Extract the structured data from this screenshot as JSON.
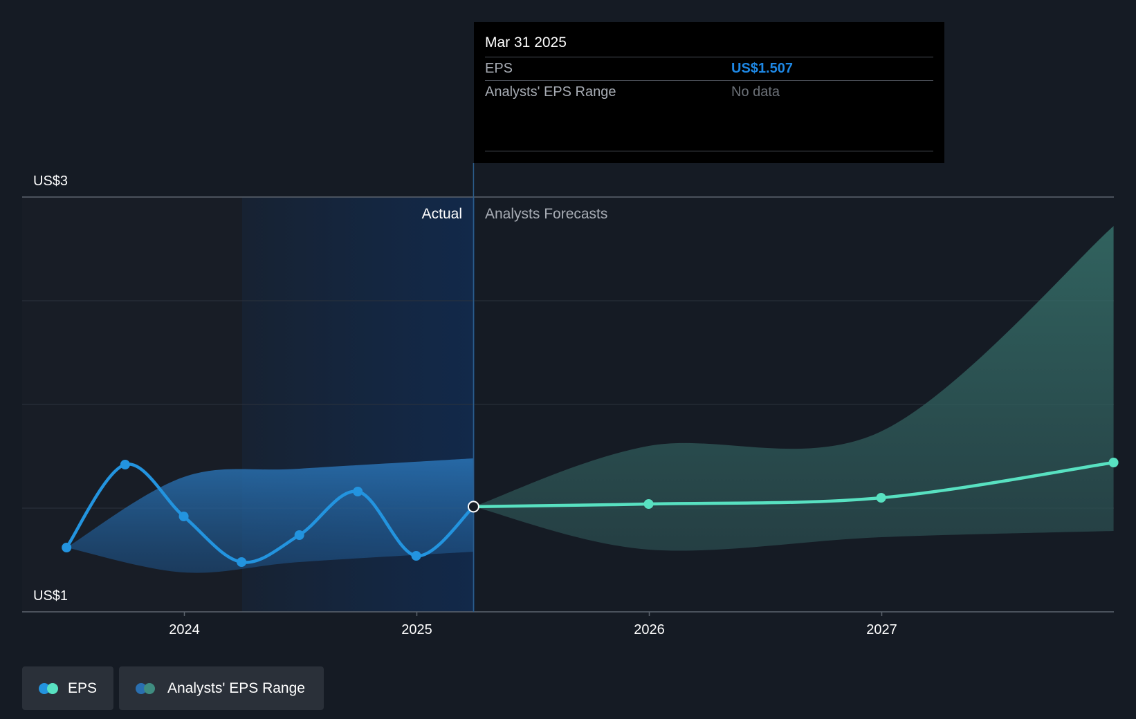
{
  "chart_data": {
    "type": "line",
    "y_axis": {
      "labels": [
        "US$3",
        "US$1"
      ],
      "ylim": [
        1,
        3
      ],
      "grid": true
    },
    "x_axis": {
      "ticks": [
        "2024",
        "2025",
        "2026",
        "2027"
      ]
    },
    "sections": {
      "actual_label": "Actual",
      "forecast_label": "Analysts Forecasts"
    },
    "series": [
      {
        "name": "EPS",
        "color": "#2394df",
        "points": [
          {
            "date": "2023-06-30",
            "eps": 1.31
          },
          {
            "date": "2023-09-30",
            "eps": 1.71
          },
          {
            "date": "2023-12-31",
            "eps": 1.46
          },
          {
            "date": "2024-03-31",
            "eps": 1.24
          },
          {
            "date": "2024-06-30",
            "eps": 1.37
          },
          {
            "date": "2024-09-30",
            "eps": 1.58
          },
          {
            "date": "2024-12-31",
            "eps": 1.27
          },
          {
            "date": "2025-03-31",
            "eps": 1.507
          }
        ]
      },
      {
        "name": "EPS Forecast",
        "color": "#58e1c1",
        "points": [
          {
            "date": "2025-03-31",
            "eps": 1.507
          },
          {
            "date": "2025-12-31",
            "eps": 1.52
          },
          {
            "date": "2026-12-31",
            "eps": 1.55
          },
          {
            "date": "2027-12-31",
            "eps": 1.72
          }
        ]
      }
    ],
    "ranges": [
      {
        "name": "Analysts' EPS Range (past)",
        "color": "#2a6fb0",
        "points": [
          {
            "date": "2023-06-30",
            "low": 1.31,
            "high": 1.31
          },
          {
            "date": "2023-12-31",
            "low": 1.19,
            "high": 1.65
          },
          {
            "date": "2024-06-30",
            "low": 1.24,
            "high": 1.69
          },
          {
            "date": "2025-03-31",
            "low": 1.29,
            "high": 1.74
          }
        ]
      },
      {
        "name": "Analysts' EPS Range (forecast)",
        "color": "#2d4a4e",
        "points": [
          {
            "date": "2025-03-31",
            "low": 1.507,
            "high": 1.507
          },
          {
            "date": "2025-12-31",
            "low": 1.3,
            "high": 1.8
          },
          {
            "date": "2026-12-31",
            "low": 1.36,
            "high": 1.87
          },
          {
            "date": "2027-12-31",
            "low": 1.39,
            "high": 2.86
          }
        ]
      }
    ],
    "legend": [
      {
        "label": "EPS",
        "colors": [
          "#2394df",
          "#58e1c1"
        ]
      },
      {
        "label": "Analysts' EPS Range",
        "colors": [
          "#2a6fb0",
          "#3f8c80"
        ]
      }
    ]
  },
  "tooltip": {
    "date": "Mar 31 2025",
    "rows": [
      {
        "label": "EPS",
        "value": "US$1.507"
      },
      {
        "label": "Analysts' EPS Range",
        "value": "No data"
      }
    ]
  }
}
